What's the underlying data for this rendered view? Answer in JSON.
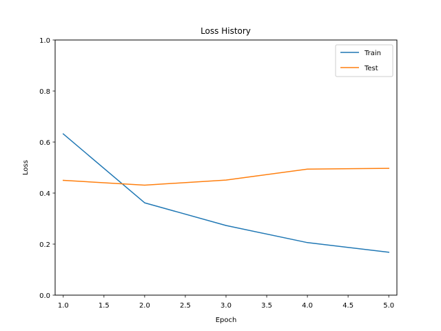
{
  "chart_data": {
    "type": "line",
    "title": "Loss History",
    "xlabel": "Epoch",
    "ylabel": "Loss",
    "xlim": [
      0.9,
      5.1
    ],
    "ylim": [
      0.0,
      1.0
    ],
    "xticks": [
      "1.0",
      "1.5",
      "2.0",
      "2.5",
      "3.0",
      "3.5",
      "4.0",
      "4.5",
      "5.0"
    ],
    "yticks": [
      "0.0",
      "0.2",
      "0.4",
      "0.6",
      "0.8",
      "1.0"
    ],
    "x": [
      1,
      2,
      3,
      4,
      5
    ],
    "series": [
      {
        "name": "Train",
        "color": "#1f77b4",
        "values": [
          0.632,
          0.362,
          0.273,
          0.206,
          0.168
        ]
      },
      {
        "name": "Test",
        "color": "#ff7f0e",
        "values": [
          0.45,
          0.431,
          0.451,
          0.494,
          0.497
        ]
      }
    ],
    "legend_position": "top-right",
    "grid": false
  }
}
